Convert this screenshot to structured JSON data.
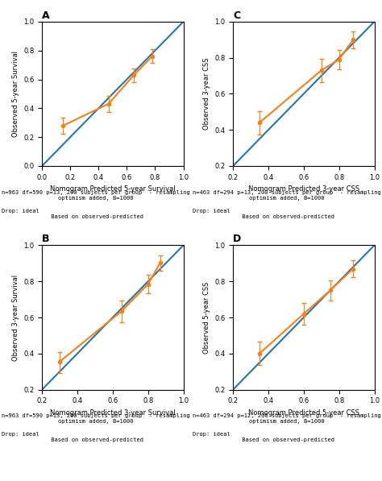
{
  "chart_data": [
    {
      "type": "line",
      "title": "A",
      "x_label": "Nomogram Predicted 5-year Survival",
      "y_label": "Observed 5-year Survival",
      "xlim": [
        0.0,
        1.0
      ],
      "ylim": [
        0.0,
        1.0
      ],
      "xticks": [
        {
          "value": 0.0,
          "label": "0.0"
        },
        {
          "value": 0.2,
          "label": "0.2"
        },
        {
          "value": 0.4,
          "label": "0.4"
        },
        {
          "value": 0.6,
          "label": "0.6"
        },
        {
          "value": 0.8,
          "label": "0.8"
        },
        {
          "value": 1.0,
          "label": "1.0"
        }
      ],
      "yticks": [
        {
          "value": 0.0,
          "label": "0.0"
        },
        {
          "value": 0.2,
          "label": "0.2"
        },
        {
          "value": 0.4,
          "label": "0.4"
        },
        {
          "value": 0.6,
          "label": "0.6"
        },
        {
          "value": 0.8,
          "label": "0.8"
        },
        {
          "value": 1.0,
          "label": "1.0"
        }
      ],
      "grid": false,
      "series": [
        {
          "x": [
            0.0,
            1.0
          ],
          "values": [
            0.0,
            1.0
          ]
        },
        {
          "x": [
            0.15,
            0.47,
            0.65,
            0.78
          ],
          "values": [
            0.28,
            0.43,
            0.63,
            0.76
          ],
          "marker": "o",
          "error_lo": [
            0.055,
            0.055,
            0.048,
            0.048
          ],
          "error_hi": [
            0.055,
            0.055,
            0.048,
            0.048
          ]
        }
      ],
      "annotations": [
        "n=963 df=590 p=13, 200 subjects per group  - resampling optimism added, B=1000",
        "Drop: ideal                                              Based on observed-predicted"
      ]
    },
    {
      "type": "line",
      "title": "C",
      "x_label": "Nomogram Predicted 3-year CSS",
      "y_label": "Observed 3-year CSS",
      "xlim": [
        0.2,
        1.0
      ],
      "ylim": [
        0.2,
        1.0
      ],
      "xticks": [
        {
          "value": 0.2,
          "label": "0.2"
        },
        {
          "value": 0.4,
          "label": "0.4"
        },
        {
          "value": 0.6,
          "label": "0.6"
        },
        {
          "value": 0.8,
          "label": "0.8"
        },
        {
          "value": 1.0,
          "label": "1.0"
        }
      ],
      "yticks": [
        {
          "value": 0.2,
          "label": "0.2"
        },
        {
          "value": 0.4,
          "label": "0.4"
        },
        {
          "value": 0.6,
          "label": "0.6"
        },
        {
          "value": 0.8,
          "label": "0.8"
        },
        {
          "value": 1.0,
          "label": "1.0"
        }
      ],
      "grid": false,
      "series": [
        {
          "x": [
            0.2,
            1.0
          ],
          "values": [
            0.2,
            1.0
          ]
        },
        {
          "x": [
            0.35,
            0.7,
            0.8,
            0.88
          ],
          "values": [
            0.44,
            0.73,
            0.79,
            0.9
          ],
          "marker": "o",
          "error_lo": [
            0.065,
            0.065,
            0.055,
            0.048
          ],
          "error_hi": [
            0.065,
            0.065,
            0.055,
            0.048
          ]
        }
      ],
      "annotations": [
        "n=463 df=294 p=13, 200 subjects per group  - resampling optimism added, B=1000",
        "Drop: ideal                                              Based on observed-predicted"
      ]
    },
    {
      "type": "line",
      "title": "B",
      "x_label": "Nomogram Predicted 3-year Survival",
      "y_label": "Observed 3-year Survival",
      "xlim": [
        0.2,
        1.0
      ],
      "ylim": [
        0.2,
        1.0
      ],
      "xticks": [
        {
          "value": 0.2,
          "label": "0.2"
        },
        {
          "value": 0.4,
          "label": "0.4"
        },
        {
          "value": 0.6,
          "label": "0.6"
        },
        {
          "value": 0.8,
          "label": "0.8"
        },
        {
          "value": 1.0,
          "label": "1.0"
        }
      ],
      "yticks": [
        {
          "value": 0.2,
          "label": "0.2"
        },
        {
          "value": 0.4,
          "label": "0.4"
        },
        {
          "value": 0.6,
          "label": "0.6"
        },
        {
          "value": 0.8,
          "label": "0.8"
        },
        {
          "value": 1.0,
          "label": "1.0"
        }
      ],
      "grid": false,
      "series": [
        {
          "x": [
            0.2,
            1.0
          ],
          "values": [
            0.2,
            1.0
          ]
        },
        {
          "x": [
            0.3,
            0.65,
            0.8,
            0.87
          ],
          "values": [
            0.355,
            0.635,
            0.785,
            0.905
          ],
          "marker": "o",
          "error_lo": [
            0.065,
            0.06,
            0.052,
            0.045
          ],
          "error_hi": [
            0.052,
            0.06,
            0.052,
            0.038
          ]
        }
      ],
      "annotations": [
        "n=963 df=590 p=13, 200 subjects per group  - resampling optimism added, B=1000",
        "Drop: ideal                                              Based on observed-predicted"
      ]
    },
    {
      "type": "line",
      "title": "D",
      "x_label": "Nomogram Predicted 5-year CSS",
      "y_label": "Observed 5-year CSS",
      "xlim": [
        0.2,
        1.0
      ],
      "ylim": [
        0.2,
        1.0
      ],
      "xticks": [
        {
          "value": 0.2,
          "label": "0.2"
        },
        {
          "value": 0.4,
          "label": "0.4"
        },
        {
          "value": 0.6,
          "label": "0.6"
        },
        {
          "value": 0.8,
          "label": "0.8"
        },
        {
          "value": 1.0,
          "label": "1.0"
        }
      ],
      "yticks": [
        {
          "value": 0.2,
          "label": "0.2"
        },
        {
          "value": 0.4,
          "label": "0.4"
        },
        {
          "value": 0.6,
          "label": "0.6"
        },
        {
          "value": 0.8,
          "label": "0.8"
        },
        {
          "value": 1.0,
          "label": "1.0"
        }
      ],
      "grid": false,
      "series": [
        {
          "x": [
            0.2,
            1.0
          ],
          "values": [
            0.2,
            1.0
          ]
        },
        {
          "x": [
            0.35,
            0.6,
            0.75,
            0.88
          ],
          "values": [
            0.4,
            0.62,
            0.75,
            0.87
          ],
          "marker": "o",
          "error_lo": [
            0.065,
            0.06,
            0.055,
            0.048
          ],
          "error_hi": [
            0.065,
            0.06,
            0.055,
            0.048
          ]
        }
      ],
      "annotations": [
        "n=463 df=294 p=12, 200 subjects per group  - resampling optimism added, B=1000",
        "Drop: ideal                                              Based on observed-predicted"
      ]
    }
  ]
}
